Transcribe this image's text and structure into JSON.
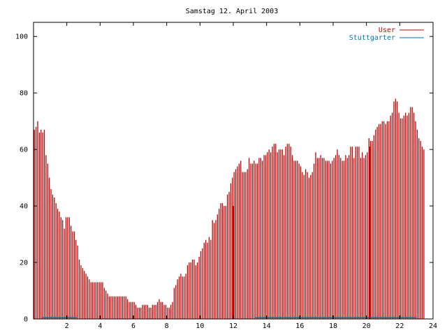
{
  "chart_data": {
    "type": "bar",
    "title": "Samstag 12. April 2003",
    "xlabel": "",
    "ylabel": "",
    "xlim": [
      0,
      24
    ],
    "ylim": [
      0,
      105
    ],
    "grid": false,
    "legend_position": "top-right",
    "x_ticks": [
      "2",
      "4",
      "6",
      "8",
      "10",
      "12",
      "14",
      "16",
      "18",
      "20",
      "22",
      "24"
    ],
    "y_ticks": [
      "0",
      "20",
      "40",
      "60",
      "80",
      "100"
    ],
    "series": [
      {
        "name": "User",
        "color": "#cc0000",
        "x_step": 0.1,
        "values": [
          67,
          68,
          70,
          66,
          67,
          66,
          67,
          58,
          55,
          50,
          46,
          44,
          43,
          41,
          39,
          38,
          36,
          35,
          32,
          36,
          36,
          36,
          33,
          31,
          31,
          28,
          26,
          21,
          19,
          18,
          17,
          16,
          15,
          14,
          13,
          13,
          13,
          13,
          13,
          13,
          13,
          13,
          11,
          10,
          9,
          8,
          8,
          8,
          8,
          8,
          8,
          8,
          8,
          8,
          8,
          8,
          7,
          6,
          6,
          6,
          6,
          5,
          4,
          4,
          4,
          5,
          5,
          5,
          5,
          4,
          4,
          5,
          5,
          5,
          6,
          7,
          6,
          6,
          5,
          5,
          4,
          4,
          5,
          6,
          11,
          12,
          14,
          15,
          16,
          15,
          15,
          16,
          19,
          20,
          20,
          21,
          21,
          19,
          20,
          22,
          24,
          25,
          27,
          28,
          27,
          29,
          28,
          35,
          34,
          35,
          37,
          39,
          41,
          41,
          40,
          40,
          44,
          45,
          48,
          50,
          52,
          53,
          54,
          55,
          56,
          52,
          52,
          52,
          53,
          57,
          55,
          55,
          56,
          55,
          55,
          57,
          57,
          56,
          58,
          58,
          59,
          60,
          59,
          61,
          62,
          62,
          59,
          60,
          60,
          60,
          58,
          61,
          62,
          62,
          61,
          58,
          56,
          56,
          56,
          55,
          54,
          52,
          51,
          53,
          52,
          50,
          51,
          52,
          55,
          59,
          57,
          57,
          58,
          57,
          57,
          56,
          56,
          56,
          55,
          56,
          57,
          58,
          60,
          58,
          57,
          56,
          56,
          58,
          57,
          58,
          61,
          61,
          57,
          61,
          61,
          61,
          57,
          59,
          57,
          58,
          59,
          64,
          63,
          63,
          65,
          67,
          68,
          69,
          69,
          70,
          70,
          69,
          70,
          70,
          72,
          73,
          77,
          78,
          77,
          73,
          71,
          71,
          72,
          73,
          72,
          73,
          75,
          75,
          73,
          70,
          67,
          64,
          63,
          61,
          60
        ]
      },
      {
        "name": "Stuttgarter",
        "color": "#0072b2",
        "segments": [
          [
            0.5,
            2.6
          ],
          [
            13.3,
            23.0
          ]
        ],
        "value": 0.5
      }
    ],
    "highlight_lines": [
      {
        "x": 12.0,
        "value": 40
      },
      {
        "x": 20.2,
        "value": 61
      }
    ]
  }
}
